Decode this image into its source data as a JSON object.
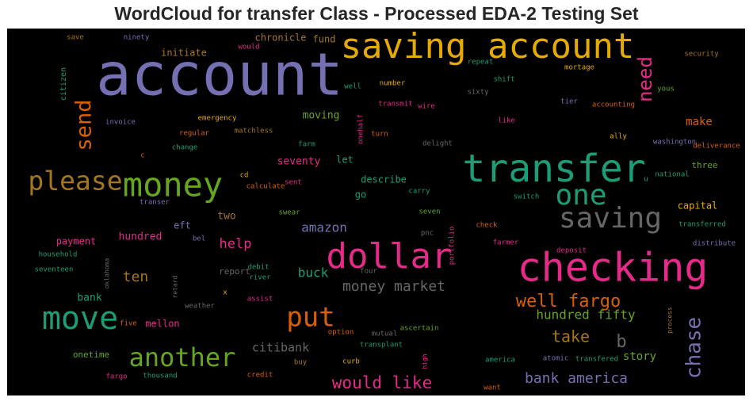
{
  "chart_data": {
    "type": "wordcloud",
    "title": "WordCloud for transfer Class - Processed EDA-2 Testing Set",
    "background": "#000000",
    "palette": [
      "#1b9e77",
      "#d95f02",
      "#7570b3",
      "#e7298a",
      "#66a61e",
      "#e6ab02",
      "#a6761d",
      "#666666"
    ],
    "words": [
      {
        "text": "account",
        "weight": 1.0,
        "color": "#7570b3"
      },
      {
        "text": "saving account",
        "weight": 0.62,
        "color": "#e6ab02"
      },
      {
        "text": "transfer",
        "weight": 0.68,
        "color": "#1b9e77"
      },
      {
        "text": "checking",
        "weight": 0.66,
        "color": "#e7298a"
      },
      {
        "text": "dollar",
        "weight": 0.6,
        "color": "#e7298a"
      },
      {
        "text": "money",
        "weight": 0.55,
        "color": "#66a61e"
      },
      {
        "text": "move",
        "weight": 0.52,
        "color": "#1b9e77"
      },
      {
        "text": "saving",
        "weight": 0.49,
        "color": "#666666"
      },
      {
        "text": "one",
        "weight": 0.47,
        "color": "#1b9e77"
      },
      {
        "text": "please",
        "weight": 0.43,
        "color": "#a6761d"
      },
      {
        "text": "put",
        "weight": 0.44,
        "color": "#d95f02"
      },
      {
        "text": "another",
        "weight": 0.42,
        "color": "#66a61e"
      },
      {
        "text": "send",
        "weight": 0.36,
        "color": "#d95f02"
      },
      {
        "text": "need",
        "weight": 0.33,
        "color": "#e7298a"
      },
      {
        "text": "chase",
        "weight": 0.33,
        "color": "#7570b3"
      },
      {
        "text": "well fargo",
        "weight": 0.29,
        "color": "#d95f02"
      },
      {
        "text": "would like",
        "weight": 0.28,
        "color": "#e7298a"
      },
      {
        "text": "b",
        "weight": 0.28,
        "color": "#666666"
      },
      {
        "text": "take",
        "weight": 0.26,
        "color": "#a6761d"
      },
      {
        "text": "money market",
        "weight": 0.24,
        "color": "#666666"
      },
      {
        "text": "bank america",
        "weight": 0.24,
        "color": "#7570b3"
      },
      {
        "text": "hundred fifty",
        "weight": 0.22,
        "color": "#66a61e"
      },
      {
        "text": "ten",
        "weight": 0.23,
        "color": "#a6761d"
      },
      {
        "text": "help",
        "weight": 0.23,
        "color": "#e7298a"
      },
      {
        "text": "amazon",
        "weight": 0.22,
        "color": "#7570b3"
      },
      {
        "text": "buck",
        "weight": 0.22,
        "color": "#1b9e77"
      },
      {
        "text": "citibank",
        "weight": 0.2,
        "color": "#666666"
      },
      {
        "text": "story",
        "weight": 0.19,
        "color": "#66a61e"
      },
      {
        "text": "make",
        "weight": 0.18,
        "color": "#d95f02"
      },
      {
        "text": "moving",
        "weight": 0.18,
        "color": "#66a61e"
      },
      {
        "text": "seventy",
        "weight": 0.17,
        "color": "#e7298a"
      },
      {
        "text": "two",
        "weight": 0.17,
        "color": "#a6761d"
      },
      {
        "text": "hundred",
        "weight": 0.17,
        "color": "#e7298a"
      },
      {
        "text": "bank",
        "weight": 0.17,
        "color": "#1b9e77"
      },
      {
        "text": "chronicle",
        "weight": 0.16,
        "color": "#a6761d"
      },
      {
        "text": "fund",
        "weight": 0.16,
        "color": "#a6761d"
      },
      {
        "text": "initiate",
        "weight": 0.14,
        "color": "#a6761d"
      },
      {
        "text": "capital",
        "weight": 0.15,
        "color": "#e6ab02"
      },
      {
        "text": "three",
        "weight": 0.14,
        "color": "#66a61e"
      },
      {
        "text": "let",
        "weight": 0.14,
        "color": "#1b9e77"
      },
      {
        "text": "go",
        "weight": 0.14,
        "color": "#1b9e77"
      },
      {
        "text": "describe",
        "weight": 0.14,
        "color": "#1b9e77"
      },
      {
        "text": "eft",
        "weight": 0.14,
        "color": "#7570b3"
      },
      {
        "text": "mellon",
        "weight": 0.14,
        "color": "#e7298a"
      },
      {
        "text": "payment",
        "weight": 0.14,
        "color": "#e7298a"
      },
      {
        "text": "onetime",
        "weight": 0.14,
        "color": "#66a61e"
      },
      {
        "text": "report",
        "weight": 0.13,
        "color": "#666666"
      },
      {
        "text": "citizen",
        "weight": 0.12,
        "color": "#1b9e77"
      },
      {
        "text": "save",
        "weight": 0.1,
        "color": "#a6761d"
      },
      {
        "text": "ninety",
        "weight": 0.1,
        "color": "#7570b3"
      },
      {
        "text": "would",
        "weight": 0.1,
        "color": "#e7298a"
      },
      {
        "text": "well",
        "weight": 0.1,
        "color": "#1b9e77"
      },
      {
        "text": "repeat",
        "weight": 0.1,
        "color": "#1b9e77"
      },
      {
        "text": "shift",
        "weight": 0.1,
        "color": "#1b9e77"
      },
      {
        "text": "security",
        "weight": 0.1,
        "color": "#a6761d"
      },
      {
        "text": "mortage",
        "weight": 0.1,
        "color": "#e6ab02"
      },
      {
        "text": "number",
        "weight": 0.1,
        "color": "#e6ab02"
      },
      {
        "text": "sixty",
        "weight": 0.1,
        "color": "#666666"
      },
      {
        "text": "yous",
        "weight": 0.1,
        "color": "#66a61e"
      },
      {
        "text": "transmit",
        "weight": 0.1,
        "color": "#e7298a"
      },
      {
        "text": "wire",
        "weight": 0.1,
        "color": "#e7298a"
      },
      {
        "text": "tier",
        "weight": 0.1,
        "color": "#7570b3"
      },
      {
        "text": "accounting",
        "weight": 0.1,
        "color": "#d95f02"
      },
      {
        "text": "emergency",
        "weight": 0.1,
        "color": "#e6ab02"
      },
      {
        "text": "invoice",
        "weight": 0.1,
        "color": "#7570b3"
      },
      {
        "text": "regular",
        "weight": 0.1,
        "color": "#d95f02"
      },
      {
        "text": "matchless",
        "weight": 0.1,
        "color": "#a6761d"
      },
      {
        "text": "like",
        "weight": 0.1,
        "color": "#e7298a"
      },
      {
        "text": "onehalf",
        "weight": 0.1,
        "color": "#e7298a"
      },
      {
        "text": "turn",
        "weight": 0.1,
        "color": "#d95f02"
      },
      {
        "text": "delight",
        "weight": 0.1,
        "color": "#666666"
      },
      {
        "text": "ally",
        "weight": 0.1,
        "color": "#e6ab02"
      },
      {
        "text": "washington",
        "weight": 0.1,
        "color": "#7570b3"
      },
      {
        "text": "deliverance",
        "weight": 0.1,
        "color": "#d95f02"
      },
      {
        "text": "change",
        "weight": 0.1,
        "color": "#1b9e77"
      },
      {
        "text": "farm",
        "weight": 0.1,
        "color": "#1b9e77"
      },
      {
        "text": "c",
        "weight": 0.1,
        "color": "#d95f02"
      },
      {
        "text": "cd",
        "weight": 0.1,
        "color": "#e6ab02"
      },
      {
        "text": "sent",
        "weight": 0.1,
        "color": "#e7298a"
      },
      {
        "text": "calculate",
        "weight": 0.1,
        "color": "#d95f02"
      },
      {
        "text": "carry",
        "weight": 0.1,
        "color": "#1b9e77"
      },
      {
        "text": "u",
        "weight": 0.1,
        "color": "#1b9e77"
      },
      {
        "text": "national",
        "weight": 0.1,
        "color": "#1b9e77"
      },
      {
        "text": "transer",
        "weight": 0.1,
        "color": "#7570b3"
      },
      {
        "text": "switch",
        "weight": 0.1,
        "color": "#1b9e77"
      },
      {
        "text": "swear",
        "weight": 0.1,
        "color": "#66a61e"
      },
      {
        "text": "seven",
        "weight": 0.1,
        "color": "#66a61e"
      },
      {
        "text": "transferred",
        "weight": 0.1,
        "color": "#1b9e77"
      },
      {
        "text": "bel",
        "weight": 0.1,
        "color": "#7570b3"
      },
      {
        "text": "pnc",
        "weight": 0.1,
        "color": "#666666"
      },
      {
        "text": "check",
        "weight": 0.1,
        "color": "#d95f02"
      },
      {
        "text": "portfolio",
        "weight": 0.1,
        "color": "#e7298a"
      },
      {
        "text": "farmer",
        "weight": 0.1,
        "color": "#e7298a"
      },
      {
        "text": "distribute",
        "weight": 0.1,
        "color": "#7570b3"
      },
      {
        "text": "household",
        "weight": 0.1,
        "color": "#1b9e77"
      },
      {
        "text": "deposit",
        "weight": 0.1,
        "color": "#e7298a"
      },
      {
        "text": "seventeen",
        "weight": 0.1,
        "color": "#1b9e77"
      },
      {
        "text": "oklahoma",
        "weight": 0.09,
        "color": "#666666"
      },
      {
        "text": "retard",
        "weight": 0.09,
        "color": "#666666"
      },
      {
        "text": "debit",
        "weight": 0.1,
        "color": "#1b9e77"
      },
      {
        "text": "river",
        "weight": 0.1,
        "color": "#1b9e77"
      },
      {
        "text": "four",
        "weight": 0.1,
        "color": "#666666"
      },
      {
        "text": "x",
        "weight": 0.1,
        "color": "#e6ab02"
      },
      {
        "text": "assist",
        "weight": 0.1,
        "color": "#e7298a"
      },
      {
        "text": "weather",
        "weight": 0.1,
        "color": "#666666"
      },
      {
        "text": "five",
        "weight": 0.1,
        "color": "#d95f02"
      },
      {
        "text": "option",
        "weight": 0.1,
        "color": "#d95f02"
      },
      {
        "text": "mutual",
        "weight": 0.1,
        "color": "#666666"
      },
      {
        "text": "ascertain",
        "weight": 0.1,
        "color": "#66a61e"
      },
      {
        "text": "process",
        "weight": 0.09,
        "color": "#a6761d"
      },
      {
        "text": "transplant",
        "weight": 0.1,
        "color": "#1b9e77"
      },
      {
        "text": "high",
        "weight": 0.09,
        "color": "#e7298a"
      },
      {
        "text": "america",
        "weight": 0.1,
        "color": "#1b9e77"
      },
      {
        "text": "atomic",
        "weight": 0.1,
        "color": "#7570b3"
      },
      {
        "text": "transfered",
        "weight": 0.1,
        "color": "#1b9e77"
      },
      {
        "text": "fargo",
        "weight": 0.1,
        "color": "#e7298a"
      },
      {
        "text": "thousand",
        "weight": 0.1,
        "color": "#1b9e77"
      },
      {
        "text": "credit",
        "weight": 0.1,
        "color": "#d95f02"
      },
      {
        "text": "buy",
        "weight": 0.1,
        "color": "#a6761d"
      },
      {
        "text": "curb",
        "weight": 0.1,
        "color": "#e6ab02"
      },
      {
        "text": "want",
        "weight": 0.1,
        "color": "#d95f02"
      }
    ]
  }
}
